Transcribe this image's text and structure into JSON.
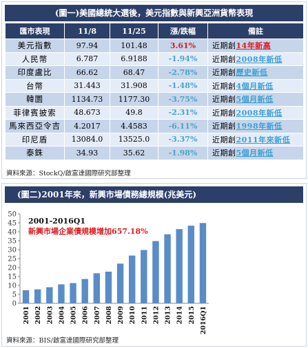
{
  "table_panel": {
    "title": "(圖一)美國總統大選後，美元指數與新興亞洲貨幣表現",
    "headers": [
      "匯市表現",
      "11/8",
      "11/25",
      "漲/跌幅",
      "備註"
    ],
    "rows": [
      {
        "name": "美元指數",
        "v1": "97.94",
        "v2": "101.48",
        "chg": "3.61%",
        "note_prefix": "近期創",
        "note_hl": "14年新高",
        "note_color": "#e0191f"
      },
      {
        "name": "人民幣",
        "v1": "6.787",
        "v2": "6.9188",
        "chg": "-1.94%",
        "note_prefix": "近期創",
        "note_hl": "2008年新低",
        "note_color": "#3e9fd4"
      },
      {
        "name": "印度盧比",
        "v1": "66.62",
        "v2": "68.47",
        "chg": "-2.78%",
        "note_prefix": "近期創",
        "note_hl": "歷史新低",
        "note_color": "#3e9fd4"
      },
      {
        "name": "台幣",
        "v1": "31.443",
        "v2": "31.908",
        "chg": "-1.48%",
        "note_prefix": "近期創",
        "note_hl": "4個月新低",
        "note_color": "#3e9fd4"
      },
      {
        "name": "韓圜",
        "v1": "1134.73",
        "v2": "1177.30",
        "chg": "-3.75%",
        "note_prefix": "近期創",
        "note_hl": "5個月新低",
        "note_color": "#3e9fd4"
      },
      {
        "name": "菲律賓披索",
        "v1": "48.673",
        "v2": "49.8",
        "chg": "-2.31%",
        "note_prefix": "近期創",
        "note_hl": "2008年新低",
        "note_color": "#3e9fd4"
      },
      {
        "name": "馬來西亞令吉",
        "v1": "4.2017",
        "v2": "4.4583",
        "chg": "-6.11%",
        "note_prefix": "近期創",
        "note_hl": "1998年新低",
        "note_color": "#3e9fd4"
      },
      {
        "name": "印尼盾",
        "v1": "13084.0",
        "v2": "13525.0",
        "chg": "-3.37%",
        "note_prefix": "近期創",
        "note_hl": "2011年來新低",
        "note_color": "#3e9fd4"
      },
      {
        "name": "泰銖",
        "v1": "34.93",
        "v2": "35.62",
        "chg": "-1.98%",
        "note_prefix": "近期創",
        "note_hl": "5個月新低",
        "note_color": "#3e9fd4"
      }
    ],
    "source": "資料來源：StockQ/啟富達國際研究部整理"
  },
  "chart_panel": {
    "title": "(圖二)2001年來，新興市場債務總規模(兆美元)",
    "source": "資料來源：BIS/啟富達國際研究部整理",
    "annotation_line1": "2001-2016Q1",
    "annotation_line2": "新興市場企業債規模增加657.18%",
    "annotation_color": "#e0191f"
  },
  "chart_data": {
    "type": "bar",
    "categories": [
      "2001",
      "2002",
      "2003",
      "2004",
      "2005",
      "2006",
      "2007",
      "2008",
      "2009",
      "2010",
      "2011",
      "2012",
      "2013",
      "2014",
      "2015",
      "2016Q1"
    ],
    "values": [
      7.3,
      7.8,
      9.0,
      10.6,
      11.3,
      13.6,
      16.8,
      17.7,
      22.2,
      26.7,
      29.8,
      34.8,
      38.6,
      41.5,
      43.4,
      44.9
    ],
    "ylim": [
      0,
      50
    ],
    "yticks": [
      0,
      5,
      10,
      15,
      20,
      25,
      30,
      35,
      40,
      45,
      50
    ],
    "bar_color": "#5a8cc8",
    "grid": false
  }
}
